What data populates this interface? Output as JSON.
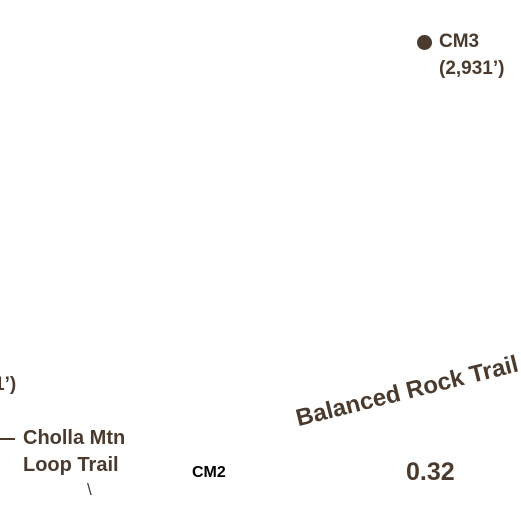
{
  "map": {
    "peak": {
      "name": "CM3",
      "elevation": "(2,931’)"
    },
    "edge_elevation_fragment": "1’)",
    "cholla_trail": {
      "line1": "Cholla Mtn",
      "line2": "Loop Trail",
      "connector": "\\"
    },
    "checkpoint_label": "CM2",
    "segment_distance": "0.32",
    "balanced_rock_trail": "Balanced Rock Trail",
    "colors": {
      "label_brown": "#4a3b2e",
      "checkpoint_black": "#000000",
      "background": "#ffffff"
    }
  }
}
